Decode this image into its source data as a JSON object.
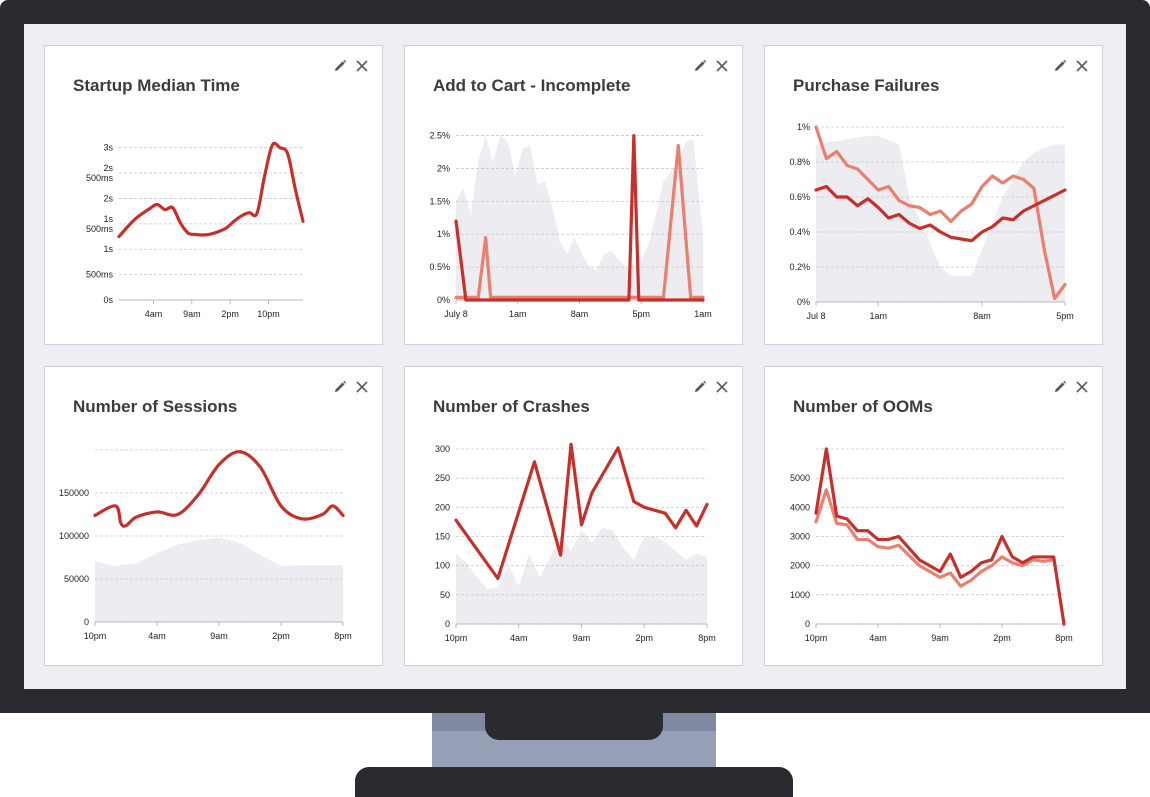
{
  "colors": {
    "dark": "#c6302a",
    "light": "#e8806d",
    "area": "#ececf1",
    "grid": "#c8c8cc"
  },
  "icons": {
    "edit": "pencil-icon",
    "close": "close-icon"
  },
  "chart_data": [
    {
      "type": "line",
      "title": "Startup Median Time",
      "ylim": [
        0,
        3.25
      ],
      "y_ticks": [
        {
          "v": 0,
          "label": "0s"
        },
        {
          "v": 0.5,
          "label": "500ms"
        },
        {
          "v": 1,
          "label": "1s"
        },
        {
          "v": 1.5,
          "label": "1s 500ms"
        },
        {
          "v": 2,
          "label": "2s"
        },
        {
          "v": 2.5,
          "label": "2s 500ms"
        },
        {
          "v": 3,
          "label": "3s"
        }
      ],
      "xlim": [
        0,
        24
      ],
      "x_ticks": [
        {
          "v": 4.5,
          "label": "4am"
        },
        {
          "v": 9.5,
          "label": "9am"
        },
        {
          "v": 14.5,
          "label": "2pm"
        },
        {
          "v": 19.5,
          "label": "10pm"
        }
      ],
      "series": [
        {
          "color": "dark",
          "smooth": true,
          "x": [
            0,
            2,
            4,
            5,
            6,
            7,
            8,
            9,
            10,
            11,
            12,
            13,
            14,
            15,
            16,
            17,
            18,
            19,
            20,
            21,
            22,
            23,
            24
          ],
          "y": [
            1.25,
            1.58,
            1.8,
            1.88,
            1.78,
            1.82,
            1.52,
            1.32,
            1.29,
            1.28,
            1.3,
            1.35,
            1.42,
            1.55,
            1.66,
            1.72,
            1.71,
            2.45,
            3.05,
            3.0,
            2.88,
            2.18,
            1.55
          ]
        }
      ]
    },
    {
      "type": "line",
      "title": "Add to Cart - Incomplete",
      "ylim": [
        0,
        2.6
      ],
      "y_ticks": [
        {
          "v": 0,
          "label": "0%"
        },
        {
          "v": 0.5,
          "label": "0.5%"
        },
        {
          "v": 1,
          "label": "1%"
        },
        {
          "v": 1.5,
          "label": "1.5%"
        },
        {
          "v": 2,
          "label": "2%"
        },
        {
          "v": 2.5,
          "label": "2.5%"
        }
      ],
      "xlim": [
        0,
        100
      ],
      "x_ticks": [
        {
          "v": 0,
          "label": "July 8"
        },
        {
          "v": 25,
          "label": "1am"
        },
        {
          "v": 50,
          "label": "8am"
        },
        {
          "v": 75,
          "label": "5pm"
        },
        {
          "v": 100,
          "label": "1am"
        }
      ],
      "area": {
        "x": [
          0,
          3,
          6,
          9,
          12,
          15,
          18,
          21,
          24,
          27,
          30,
          33,
          36,
          39,
          42,
          45,
          48,
          51,
          54,
          57,
          60,
          63,
          66,
          69,
          72,
          75,
          78,
          81,
          84,
          87,
          90,
          93,
          96,
          100
        ],
        "y": [
          1.5,
          1.7,
          1.3,
          2.1,
          2.5,
          2.1,
          2.5,
          2.4,
          1.9,
          2.3,
          2.35,
          1.75,
          1.8,
          1.4,
          0.9,
          0.7,
          0.95,
          0.7,
          0.5,
          0.45,
          0.7,
          0.75,
          0.6,
          0.5,
          0.55,
          0.6,
          0.85,
          1.3,
          1.8,
          1.95,
          2.1,
          2.4,
          2.45,
          1.0
        ]
      },
      "series": [
        {
          "color": "light",
          "x": [
            0,
            9,
            12,
            14,
            60,
            76,
            78,
            84,
            90,
            95,
            100
          ],
          "y": [
            0.04,
            0.04,
            0.95,
            0.04,
            0.04,
            0.04,
            0.04,
            0.04,
            2.35,
            0.04,
            0.04
          ]
        },
        {
          "color": "dark",
          "x": [
            0,
            4,
            70,
            72,
            74,
            76,
            100
          ],
          "y": [
            1.2,
            0,
            0,
            2.5,
            0,
            0,
            0
          ]
        }
      ]
    },
    {
      "type": "line",
      "title": "Purchase Failures",
      "ylim": [
        0,
        1.0
      ],
      "y_ticks": [
        {
          "v": 0,
          "label": "0%"
        },
        {
          "v": 0.2,
          "label": "0.2%"
        },
        {
          "v": 0.4,
          "label": "0.4%"
        },
        {
          "v": 0.6,
          "label": "0.6%"
        },
        {
          "v": 0.8,
          "label": "0.8%"
        },
        {
          "v": 1.0,
          "label": "1%"
        }
      ],
      "xlim": [
        0,
        24
      ],
      "x_ticks": [
        {
          "v": 0,
          "label": "Jul 8"
        },
        {
          "v": 6,
          "label": "1am"
        },
        {
          "v": 16,
          "label": "8am"
        },
        {
          "v": 24,
          "label": "5pm"
        }
      ],
      "area": {
        "x": [
          0,
          5,
          6,
          8,
          9,
          12,
          13,
          15,
          16,
          18,
          19,
          20,
          21,
          22,
          23,
          24
        ],
        "y": [
          0.9,
          0.95,
          0.95,
          0.9,
          0.6,
          0.2,
          0.15,
          0.15,
          0.3,
          0.6,
          0.7,
          0.8,
          0.85,
          0.88,
          0.9,
          0.9
        ]
      },
      "series": [
        {
          "color": "light",
          "x": [
            0,
            1,
            2,
            3,
            4,
            5,
            6,
            7,
            8,
            9,
            10,
            11,
            12,
            13,
            14,
            15,
            16,
            17,
            18,
            19,
            20,
            21,
            22,
            23,
            24
          ],
          "y": [
            1.0,
            0.82,
            0.86,
            0.78,
            0.76,
            0.7,
            0.64,
            0.66,
            0.58,
            0.55,
            0.54,
            0.5,
            0.52,
            0.46,
            0.52,
            0.56,
            0.66,
            0.72,
            0.68,
            0.72,
            0.7,
            0.65,
            0.3,
            0.02,
            0.1
          ]
        },
        {
          "color": "dark",
          "x": [
            0,
            1,
            2,
            3,
            4,
            5,
            6,
            7,
            8,
            9,
            10,
            11,
            12,
            13,
            14,
            15,
            16,
            17,
            18,
            19,
            20,
            21,
            22,
            23,
            24
          ],
          "y": [
            0.64,
            0.66,
            0.6,
            0.6,
            0.55,
            0.59,
            0.54,
            0.48,
            0.5,
            0.45,
            0.42,
            0.44,
            0.4,
            0.37,
            0.36,
            0.35,
            0.4,
            0.43,
            0.48,
            0.47,
            0.52,
            0.55,
            0.58,
            0.61,
            0.64
          ]
        }
      ]
    },
    {
      "type": "line",
      "title": "Number of Sessions",
      "ylim": [
        0,
        200000
      ],
      "y_ticks": [
        {
          "v": 0,
          "label": "0"
        },
        {
          "v": 50000,
          "label": "50000"
        },
        {
          "v": 100000,
          "label": "100000"
        },
        {
          "v": 150000,
          "label": "150000"
        }
      ],
      "grid_ticks": [
        0,
        50000,
        100000,
        150000,
        200000
      ],
      "xlim": [
        0,
        24
      ],
      "x_ticks": [
        {
          "v": 0,
          "label": "10pm"
        },
        {
          "v": 6,
          "label": "4am"
        },
        {
          "v": 12,
          "label": "9am"
        },
        {
          "v": 18,
          "label": "2pm"
        },
        {
          "v": 24,
          "label": "8pm"
        }
      ],
      "area": {
        "x": [
          0,
          2,
          4,
          6,
          8,
          10,
          12,
          14,
          16,
          18,
          20,
          22,
          24
        ],
        "y": [
          70000,
          65000,
          68000,
          80000,
          90000,
          95000,
          98000,
          92000,
          78000,
          65000,
          66000,
          66000,
          66000
        ]
      },
      "series": [
        {
          "color": "dark",
          "smooth": true,
          "x": [
            0,
            2,
            2.5,
            3,
            4,
            6,
            8,
            10,
            12,
            14,
            16,
            18,
            20,
            22,
            23,
            24
          ],
          "y": [
            124000,
            135000,
            115000,
            112000,
            122000,
            128000,
            125000,
            148000,
            183000,
            198000,
            180000,
            135000,
            120000,
            125000,
            135000,
            124000
          ]
        }
      ]
    },
    {
      "type": "line",
      "title": "Number of Crashes",
      "ylim": [
        0,
        300
      ],
      "y_ticks": [
        {
          "v": 0,
          "label": "0"
        },
        {
          "v": 50,
          "label": "50"
        },
        {
          "v": 100,
          "label": "100"
        },
        {
          "v": 150,
          "label": "150"
        },
        {
          "v": 200,
          "label": "200"
        },
        {
          "v": 250,
          "label": "250"
        },
        {
          "v": 300,
          "label": "300"
        }
      ],
      "xlim": [
        0,
        24
      ],
      "x_ticks": [
        {
          "v": 0,
          "label": "10pm"
        },
        {
          "v": 6,
          "label": "4am"
        },
        {
          "v": 12,
          "label": "9am"
        },
        {
          "v": 18,
          "label": "2pm"
        },
        {
          "v": 24,
          "label": "8pm"
        }
      ],
      "area": {
        "x": [
          0,
          1,
          2,
          3,
          4,
          5,
          6,
          7,
          8,
          9,
          10,
          11,
          12,
          13,
          14,
          15,
          16,
          17,
          18,
          19,
          20,
          21,
          22,
          23,
          24
        ],
        "y": [
          120,
          105,
          80,
          60,
          62,
          100,
          65,
          120,
          80,
          115,
          150,
          125,
          160,
          140,
          165,
          160,
          130,
          110,
          150,
          150,
          140,
          125,
          110,
          120,
          115
        ]
      },
      "series": [
        {
          "color": "dark",
          "x": [
            0,
            4,
            7.5,
            10,
            11,
            12,
            13,
            15.5,
            17,
            18,
            20,
            21,
            22,
            23,
            24
          ],
          "y": [
            178,
            78,
            278,
            118,
            308,
            170,
            225,
            302,
            210,
            200,
            190,
            165,
            195,
            168,
            205
          ]
        }
      ]
    },
    {
      "type": "line",
      "title": "Number of OOMs",
      "ylim": [
        0,
        6000
      ],
      "y_ticks": [
        {
          "v": 0,
          "label": "0"
        },
        {
          "v": 1000,
          "label": "1000"
        },
        {
          "v": 2000,
          "label": "2000"
        },
        {
          "v": 3000,
          "label": "3000"
        },
        {
          "v": 4000,
          "label": "4000"
        },
        {
          "v": 5000,
          "label": "5000"
        }
      ],
      "grid_ticks": [
        0,
        1000,
        2000,
        3000,
        4000,
        5000,
        6000
      ],
      "xlim": [
        0,
        24
      ],
      "x_ticks": [
        {
          "v": 0,
          "label": "10pm"
        },
        {
          "v": 6,
          "label": "4am"
        },
        {
          "v": 12,
          "label": "9am"
        },
        {
          "v": 18,
          "label": "2pm"
        },
        {
          "v": 24,
          "label": "8pm"
        }
      ],
      "series": [
        {
          "color": "light",
          "x": [
            0,
            1,
            2,
            3,
            4,
            5,
            6,
            7,
            8,
            10,
            12,
            13,
            14,
            15,
            16,
            17,
            18,
            19,
            20,
            21,
            22,
            23
          ],
          "y": [
            3500,
            4600,
            3450,
            3400,
            2900,
            2900,
            2650,
            2600,
            2700,
            2000,
            1600,
            1750,
            1300,
            1500,
            1800,
            2000,
            2300,
            2100,
            2000,
            2200,
            2150,
            2200
          ]
        },
        {
          "color": "dark",
          "x": [
            0,
            1,
            2,
            3,
            4,
            5,
            6,
            7,
            8,
            10,
            12,
            13,
            14,
            15,
            16,
            17,
            18,
            19,
            20,
            21,
            22,
            23,
            24
          ],
          "y": [
            3800,
            6000,
            3700,
            3600,
            3200,
            3200,
            2900,
            2900,
            3000,
            2200,
            1800,
            2400,
            1600,
            1800,
            2100,
            2200,
            3000,
            2300,
            2100,
            2300,
            2300,
            2300,
            0
          ]
        }
      ]
    }
  ]
}
